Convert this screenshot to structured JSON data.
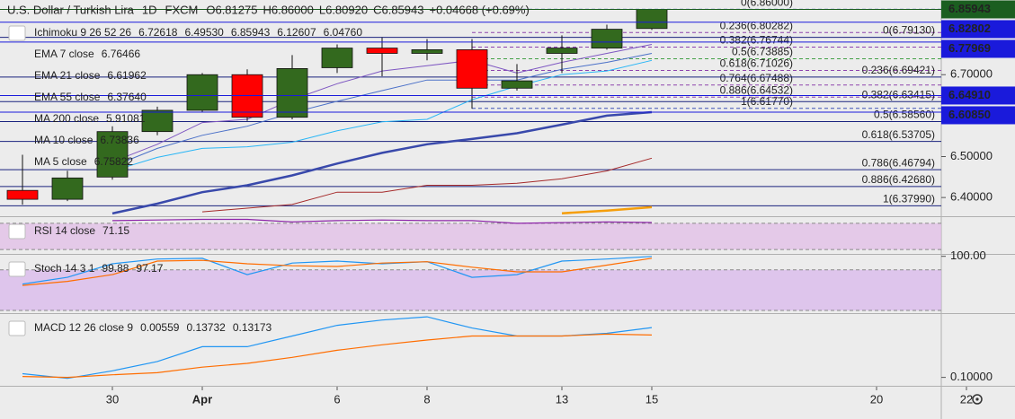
{
  "header": {
    "symbol": "U.S. Dollar / Turkish Lira",
    "interval": "1D",
    "source": "FXCM",
    "ohlc": [
      {
        "key": "O",
        "value": "6.81275"
      },
      {
        "key": "H",
        "value": "6.86000"
      },
      {
        "key": "L",
        "value": "6.80920"
      },
      {
        "key": "C",
        "value": "6.85943"
      }
    ],
    "change": "+0.04668 (+0.69%)"
  },
  "chart_data": [
    {
      "type": "candlestick",
      "xlim": [
        -0.5,
        20.44
      ],
      "xticks": [
        {
          "value": 2,
          "label": "30"
        },
        {
          "value": 4,
          "label": "Apr"
        },
        {
          "value": 7,
          "label": "6"
        },
        {
          "value": 9,
          "label": "8"
        },
        {
          "value": 12,
          "label": "13"
        },
        {
          "value": 14,
          "label": "15"
        },
        {
          "value": 19,
          "label": "20"
        },
        {
          "value": 21,
          "label": "22"
        }
      ],
      "ylim": [
        6.3565,
        6.878
      ],
      "yticks": [
        {
          "value": 6.4,
          "label": "6.40000"
        },
        {
          "value": 6.5,
          "label": "6.50000"
        },
        {
          "value": 6.7,
          "label": "6.70000"
        }
      ],
      "open": [
        6.4174,
        6.3957,
        6.45,
        6.561,
        6.613,
        6.7,
        6.596,
        6.717,
        6.765,
        6.752,
        6.761,
        6.667,
        6.752,
        6.765,
        6.81275
      ],
      "high": [
        6.5043,
        6.4652,
        6.574,
        6.622,
        6.704,
        6.713,
        6.748,
        6.774,
        6.791,
        6.787,
        6.787,
        6.726,
        6.796,
        6.822,
        6.86
      ],
      "low": [
        6.3826,
        6.3913,
        6.4435,
        6.552,
        6.609,
        6.587,
        6.591,
        6.704,
        6.696,
        6.735,
        6.617,
        6.661,
        6.704,
        6.761,
        6.8092
      ],
      "close": [
        6.3957,
        6.4478,
        6.561,
        6.613,
        6.7,
        6.596,
        6.715,
        6.765,
        6.752,
        6.761,
        6.667,
        6.685,
        6.765,
        6.811,
        6.85943
      ],
      "up_color": "#33691e",
      "down_color": "#ff0000",
      "series": [
        {
          "color": "#3949ab",
          "line_width": 2.5,
          "values": [
            null,
            null,
            6.361,
            6.385,
            6.413,
            6.43,
            6.454,
            6.483,
            6.509,
            6.53,
            6.543,
            6.557,
            6.578,
            6.6,
            6.6085
          ]
        },
        {
          "color": "#a52a2a",
          "line_width": 1,
          "values": [
            null,
            null,
            null,
            null,
            6.365,
            6.374,
            6.383,
            6.413,
            6.413,
            6.43,
            6.43,
            6.435,
            6.446,
            6.465,
            6.496
          ]
        },
        {
          "color": "#29b6f6",
          "line_width": 1,
          "values": [
            null,
            null,
            6.465,
            6.498,
            6.52,
            6.524,
            6.535,
            6.563,
            6.585,
            6.591,
            6.639,
            6.672,
            6.7,
            6.709,
            6.735
          ]
        },
        {
          "color": "#4a70c8",
          "line_width": 1,
          "values": [
            null,
            null,
            6.476,
            6.52,
            6.552,
            6.574,
            6.607,
            6.635,
            6.661,
            6.687,
            6.687,
            6.687,
            6.713,
            6.73,
            6.752
          ]
        },
        {
          "color": "#7e57c2",
          "line_width": 1,
          "values": [
            null,
            null,
            6.487,
            6.53,
            6.583,
            6.591,
            6.639,
            6.678,
            6.709,
            6.722,
            6.735,
            6.704,
            6.73,
            6.752,
            6.774
          ]
        },
        {
          "color": "#f59e0b",
          "line_width": 2.5,
          "values": [
            null,
            null,
            null,
            null,
            null,
            null,
            null,
            null,
            null,
            null,
            null,
            null,
            6.3615,
            6.368,
            6.3764
          ]
        }
      ],
      "price_labels": [
        {
          "value": 6.85943,
          "label": "6.85943",
          "bg": "#1b5e20"
        },
        {
          "value": 6.82802,
          "label": "6.82802",
          "bg": "#1a1adb"
        },
        {
          "value": 6.77969,
          "label": "6.77969",
          "bg": "#1a1adb"
        },
        {
          "value": 6.6491,
          "label": "6.64910",
          "bg": "#1a1adb"
        },
        {
          "value": 6.6085,
          "label": "6.60850",
          "bg": "#1a1adb"
        }
      ],
      "fib_sets": [
        {
          "style": "dashed",
          "start": 10,
          "levels": [
            {
              "value": 6.86,
              "label": "0(6.86000)",
              "color": "#7986cb"
            },
            {
              "value": 6.80282,
              "label": "0.236(6.80282)",
              "color": "#8e44ad"
            },
            {
              "value": 6.76744,
              "label": "0.382(6.76744)",
              "color": "#8e44ad"
            },
            {
              "value": 6.73885,
              "label": "0.5(6.73885)",
              "color": "#43a047"
            },
            {
              "value": 6.71026,
              "label": "0.618(6.71026)",
              "color": "#8e44ad"
            },
            {
              "value": 6.67488,
              "label": "0.764(6.67488)",
              "color": "#8e44ad"
            },
            {
              "value": 6.64532,
              "label": "0.886(6.64532)",
              "color": "#8e44ad"
            },
            {
              "value": 6.6177,
              "label": "1(6.61770)",
              "color": "#3f51b5"
            }
          ]
        },
        {
          "style": "solid",
          "levels": [
            {
              "value": 6.7913,
              "label": "0(6.79130)",
              "color": "#1a237e"
            },
            {
              "value": 6.69421,
              "label": "0.236(6.69421)",
              "color": "#1a237e"
            },
            {
              "value": 6.63415,
              "label": "0.382(6.63415)",
              "color": "#1a237e"
            },
            {
              "value": 6.5856,
              "label": "0.5(6.58560)",
              "color": "#1a237e"
            },
            {
              "value": 6.53705,
              "label": "0.618(6.53705)",
              "color": "#1a237e"
            },
            {
              "value": 6.46794,
              "label": "0.786(6.46794)",
              "color": "#1a237e"
            },
            {
              "value": 6.4268,
              "label": "0.886(6.42680)",
              "color": "#1a237e"
            },
            {
              "value": 6.3799,
              "label": "1(6.37990)",
              "color": "#1a237e"
            }
          ]
        }
      ],
      "indicators": [
        {
          "name": "Ichimoku 9 26 52 26",
          "values": [
            {
              "text": "6.72618",
              "color": "#2196f3"
            },
            {
              "text": "6.49530",
              "color": "#880e4f"
            },
            {
              "text": "6.85943",
              "color": "#43a047"
            },
            {
              "text": "6.12607",
              "color": "#1b5e20"
            },
            {
              "text": "6.04760",
              "color": "#e53935"
            }
          ]
        },
        {
          "name": "EMA 7 close",
          "values": [
            {
              "text": "6.76466",
              "color": "#3a5dad"
            }
          ]
        },
        {
          "name": "EMA 21 close",
          "values": [
            {
              "text": "6.61962",
              "color": "#283593"
            }
          ]
        },
        {
          "name": "EMA 55 close",
          "values": [
            {
              "text": "6.37640",
              "color": "#ff9800"
            }
          ]
        },
        {
          "name": "MA 200 close",
          "values": [
            {
              "text": "5.91081",
              "color": "#e53935"
            }
          ]
        },
        {
          "name": "MA 10 close",
          "values": [
            {
              "text": "6.73836",
              "color": "#00e5ff"
            }
          ]
        },
        {
          "name": "MA 5 close",
          "values": [
            {
              "text": "6.75822",
              "color": "#1e64b4"
            }
          ]
        }
      ]
    },
    {
      "type": "line",
      "title": "RSI 14 close",
      "legend_values": [
        {
          "text": "71.15",
          "color": "#9c27b0"
        }
      ],
      "ylim": [
        24.7,
        78
      ],
      "band": [
        30,
        70
      ],
      "band_color": "#e1bee7",
      "series": [
        {
          "color": "#8e24aa",
          "values": [
            null,
            null,
            74,
            75,
            76,
            76,
            72,
            74,
            75,
            74,
            74,
            70,
            71,
            72,
            71.15
          ]
        }
      ]
    },
    {
      "type": "line",
      "title": "Stoch 14 3 1",
      "legend_values": [
        {
          "text": "99.88",
          "color": "#2196f3"
        },
        {
          "text": "97.17",
          "color": "#ff6d00"
        }
      ],
      "ylim": [
        17.4,
        100.9
      ],
      "yticks": [
        {
          "value": 100,
          "label": "100.00"
        }
      ],
      "band": [
        20,
        80
      ],
      "band_color": "#d9b8ec",
      "series": [
        {
          "color": "#2196f3",
          "values": [
            59,
            69,
            89,
            96,
            97,
            73,
            90,
            93,
            89,
            92,
            69,
            73,
            93,
            96,
            99.88
          ]
        },
        {
          "color": "#ff6d00",
          "values": [
            57,
            63,
            73,
            93,
            94,
            89,
            86,
            85,
            90,
            92,
            84,
            77,
            77,
            87,
            97.17
          ]
        }
      ]
    },
    {
      "type": "line",
      "title": "MACD 12 26 close 9",
      "legend_values": [
        {
          "text": "0.00559",
          "color": "#26a69a"
        },
        {
          "text": "0.13732",
          "color": "#2196f3"
        },
        {
          "text": "0.13173",
          "color": "#ff6d00"
        }
      ],
      "ylim": [
        0.0937,
        0.1468
      ],
      "yticks": [
        {
          "value": 0.1,
          "label": "0.10000"
        }
      ],
      "series": [
        {
          "color": "#2196f3",
          "values": [
            0.1028,
            0.0993,
            0.1049,
            0.1119,
            0.123,
            0.123,
            0.131,
            0.139,
            0.143,
            0.1454,
            0.137,
            0.131,
            0.131,
            0.133,
            0.13732
          ]
        },
        {
          "color": "#ff6d00",
          "values": [
            0.1007,
            0.1,
            0.102,
            0.1035,
            0.1077,
            0.1105,
            0.115,
            0.1203,
            0.1244,
            0.128,
            0.131,
            0.131,
            0.131,
            0.1324,
            0.13173
          ]
        }
      ]
    }
  ]
}
